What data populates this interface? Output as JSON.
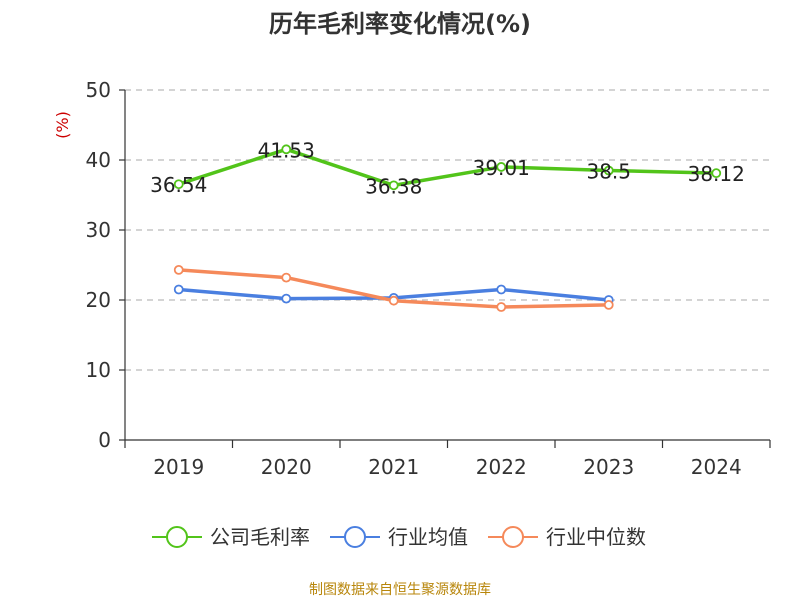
{
  "chart_data": {
    "type": "line",
    "title": "历年毛利率变化情况(%)",
    "ylabel": "(%)",
    "categories": [
      "2019",
      "2020",
      "2021",
      "2022",
      "2023",
      "2024"
    ],
    "ylim": [
      0,
      50
    ],
    "yticks": [
      0,
      10,
      20,
      30,
      40,
      50
    ],
    "grid": true,
    "legend_position": "bottom",
    "series": [
      {
        "name": "公司毛利率",
        "color": "#52c41a",
        "values": [
          36.54,
          41.53,
          36.38,
          39.01,
          38.5,
          38.12
        ],
        "labels": [
          "36.54",
          "41.53",
          "36.38",
          "39.01",
          "38.5",
          "38.12"
        ]
      },
      {
        "name": "行业均值",
        "color": "#4a7fe0",
        "values": [
          21.5,
          20.2,
          20.3,
          21.5,
          20.0,
          null
        ]
      },
      {
        "name": "行业中位数",
        "color": "#f5895a",
        "values": [
          24.3,
          23.2,
          19.9,
          19.0,
          19.3,
          null
        ]
      }
    ]
  },
  "source_text": "制图数据来自恒生聚源数据库"
}
